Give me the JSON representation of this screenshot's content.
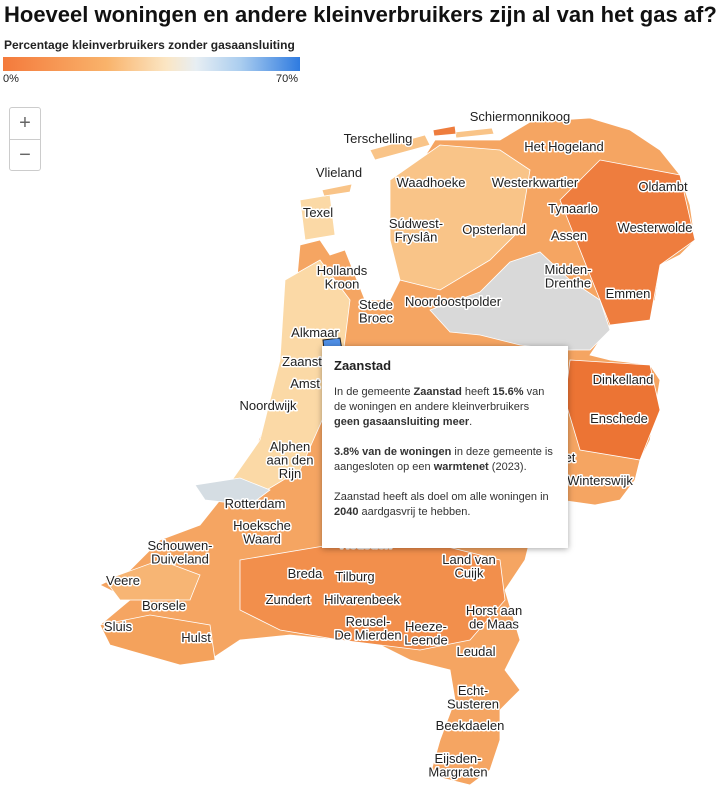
{
  "title": "Hoeveel woningen en andere kleinverbruikers zijn al van het gas af?",
  "legend": {
    "title": "Percentage kleinverbruikers zonder gasaansluiting",
    "min_label": "0%",
    "max_label": "70%"
  },
  "zoom": {
    "in": "+",
    "out": "−"
  },
  "places": [
    [
      "Schiermonnikoog"
    ],
    [
      "Terschelling"
    ],
    [
      "Het Hogeland"
    ],
    [
      "Vlieland"
    ],
    [
      "Waadhoeke"
    ],
    [
      "Westerkwartier"
    ],
    [
      "Oldambt"
    ],
    [
      "Texel"
    ],
    [
      "Súdwest-",
      "Fryslân"
    ],
    [
      "Opsterland"
    ],
    [
      "Tynaarlo"
    ],
    [
      "Assen"
    ],
    [
      "Westerwolde"
    ],
    [
      "Hollands",
      "Kroon"
    ],
    [
      "Midden-",
      "Drenthe"
    ],
    [
      "Emmen"
    ],
    [
      "Stede",
      "Broec"
    ],
    [
      "Noordoostpolder"
    ],
    [
      "Alkmaar"
    ],
    [
      "Zaanst"
    ],
    [
      "Amst"
    ],
    [
      "Noordwijk"
    ],
    [
      "Dinkelland"
    ],
    [
      "Enschede"
    ],
    [
      "Alphen",
      "aan den",
      "Rijn"
    ],
    [
      "Rotterdam"
    ],
    [
      "et"
    ],
    [
      "Winterswijk"
    ],
    [
      "Hoeksche",
      "Waard"
    ],
    [
      "Schouwen-",
      "Duiveland"
    ],
    [
      "Heusden"
    ],
    [
      "Land van",
      "Cuijk"
    ],
    [
      "Veere"
    ],
    [
      "Breda"
    ],
    [
      "Tilburg"
    ],
    [
      "Borsele"
    ],
    [
      "Zundert"
    ],
    [
      "Hilvarenbeek"
    ],
    [
      "Horst aan",
      "de Maas"
    ],
    [
      "Sluis"
    ],
    [
      "Hulst"
    ],
    [
      "Reusel-",
      "De Mierden"
    ],
    [
      "Heeze-",
      "Leende"
    ],
    [
      "Leudal"
    ],
    [
      "Echt-",
      "Susteren"
    ],
    [
      "Beekdaelen"
    ],
    [
      "Eijsden-",
      "Margraten"
    ]
  ],
  "tooltip": {
    "title": "Zaanstad",
    "paragraphs": [
      [
        {
          "text": "In de gemeente "
        },
        {
          "text": "Zaanstad",
          "bold": true
        },
        {
          "text": " heeft "
        },
        {
          "text": "15.6%",
          "bold": true
        },
        {
          "text": " van de woningen en andere kleinverbruikers "
        },
        {
          "text": "geen gasaansluiting meer",
          "bold": true
        },
        {
          "text": "."
        }
      ],
      [
        {
          "text": "3.8% van de woningen",
          "bold": true
        },
        {
          "text": " in deze gemeente is aangesloten op een "
        },
        {
          "text": "warmtenet",
          "bold": true
        },
        {
          "text": " (2023)."
        }
      ],
      [
        {
          "text": "Zaanstad heeft als doel om alle woningen in "
        },
        {
          "text": "2040",
          "bold": true
        },
        {
          "text": " aardgasvrij te hebben."
        }
      ]
    ]
  }
}
